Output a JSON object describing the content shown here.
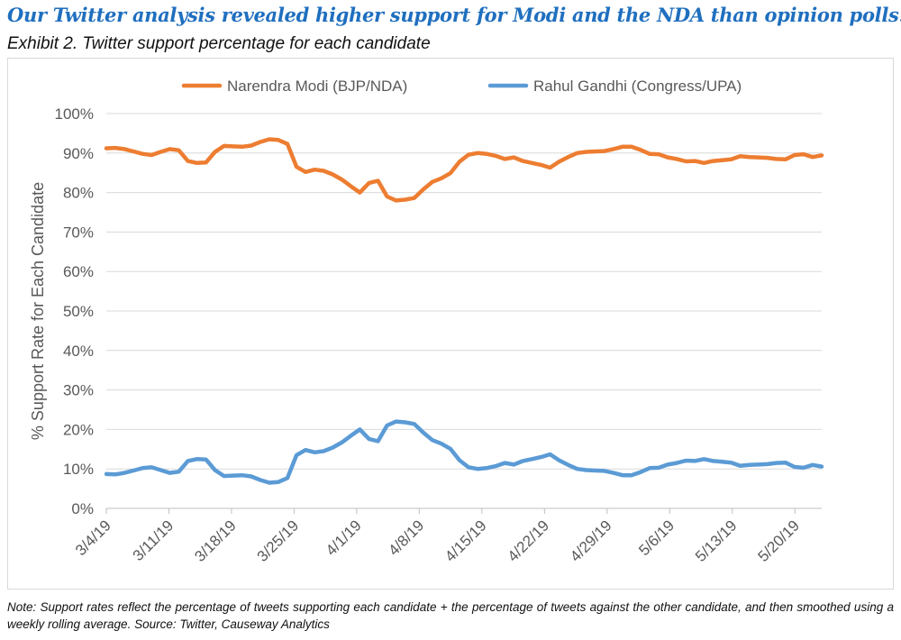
{
  "headline": "Our Twitter analysis revealed higher support for Modi and the NDA than opinion polls.",
  "exhibit_title": "Exhibit 2. Twitter support percentage for each candidate",
  "note": "Note: Support rates reflect the percentage of tweets supporting each candidate + the percentage of tweets against the other candidate, and then smoothed using a weekly rolling average.  Source: Twitter, Causeway Analytics",
  "chart_data": {
    "type": "line",
    "title": "",
    "xlabel": "",
    "ylabel": "% Support Rate for Each Candidate",
    "ylim": [
      0,
      100
    ],
    "y_ticks": [
      "0%",
      "10%",
      "20%",
      "30%",
      "40%",
      "50%",
      "60%",
      "70%",
      "80%",
      "90%",
      "100%"
    ],
    "x_tick_labels": [
      "3/4/19",
      "3/11/19",
      "3/18/19",
      "3/25/19",
      "4/1/19",
      "4/8/19",
      "4/15/19",
      "4/22/19",
      "4/29/19",
      "5/6/19",
      "5/13/19",
      "5/20/19"
    ],
    "x_start": "3/4/19",
    "x_end": "5/23/19",
    "grid": "horizontal",
    "legend_position": "top",
    "series": [
      {
        "name": "Narendra Modi (BJP/NDA)",
        "color": "#ed7d31",
        "values": [
          91.2,
          91.3,
          91.0,
          90.4,
          89.8,
          89.5,
          90.3,
          91.0,
          90.7,
          88.0,
          87.5,
          87.6,
          90.3,
          91.8,
          91.7,
          91.6,
          91.9,
          92.8,
          93.5,
          93.3,
          92.3,
          86.5,
          85.2,
          85.8,
          85.5,
          84.6,
          83.3,
          81.6,
          80.0,
          82.4,
          83.0,
          79.0,
          78.0,
          78.2,
          78.6,
          80.8,
          82.7,
          83.6,
          84.9,
          87.8,
          89.6,
          90.0,
          89.8,
          89.3,
          88.5,
          88.9,
          88.0,
          87.5,
          87.0,
          86.3,
          87.8,
          89.0,
          90.0,
          90.3,
          90.4,
          90.5,
          91.0,
          91.6,
          91.6,
          90.8,
          89.8,
          89.7,
          88.9,
          88.5,
          87.9,
          88.0,
          87.5,
          88.0,
          88.2,
          88.4,
          89.2,
          89.0,
          88.9,
          88.8,
          88.5,
          88.4,
          89.5,
          89.7,
          89.0,
          89.4
        ]
      },
      {
        "name": "Rahul Gandhi (Congress/UPA)",
        "color": "#5b9bd5",
        "values": [
          8.7,
          8.6,
          9.0,
          9.6,
          10.2,
          10.4,
          9.7,
          9.0,
          9.3,
          12.0,
          12.5,
          12.4,
          9.7,
          8.2,
          8.3,
          8.4,
          8.1,
          7.2,
          6.5,
          6.7,
          7.7,
          13.5,
          14.8,
          14.2,
          14.5,
          15.4,
          16.7,
          18.4,
          20.0,
          17.6,
          17.0,
          21.0,
          22.0,
          21.8,
          21.4,
          19.2,
          17.3,
          16.4,
          15.1,
          12.2,
          10.4,
          10.0,
          10.2,
          10.7,
          11.5,
          11.1,
          12.0,
          12.5,
          13.0,
          13.7,
          12.2,
          11.0,
          10.0,
          9.7,
          9.6,
          9.5,
          9.0,
          8.4,
          8.4,
          9.2,
          10.2,
          10.3,
          11.1,
          11.5,
          12.1,
          12.0,
          12.5,
          12.0,
          11.8,
          11.6,
          10.8,
          11.0,
          11.1,
          11.2,
          11.5,
          11.6,
          10.5,
          10.3,
          11.0,
          10.6
        ]
      }
    ]
  }
}
